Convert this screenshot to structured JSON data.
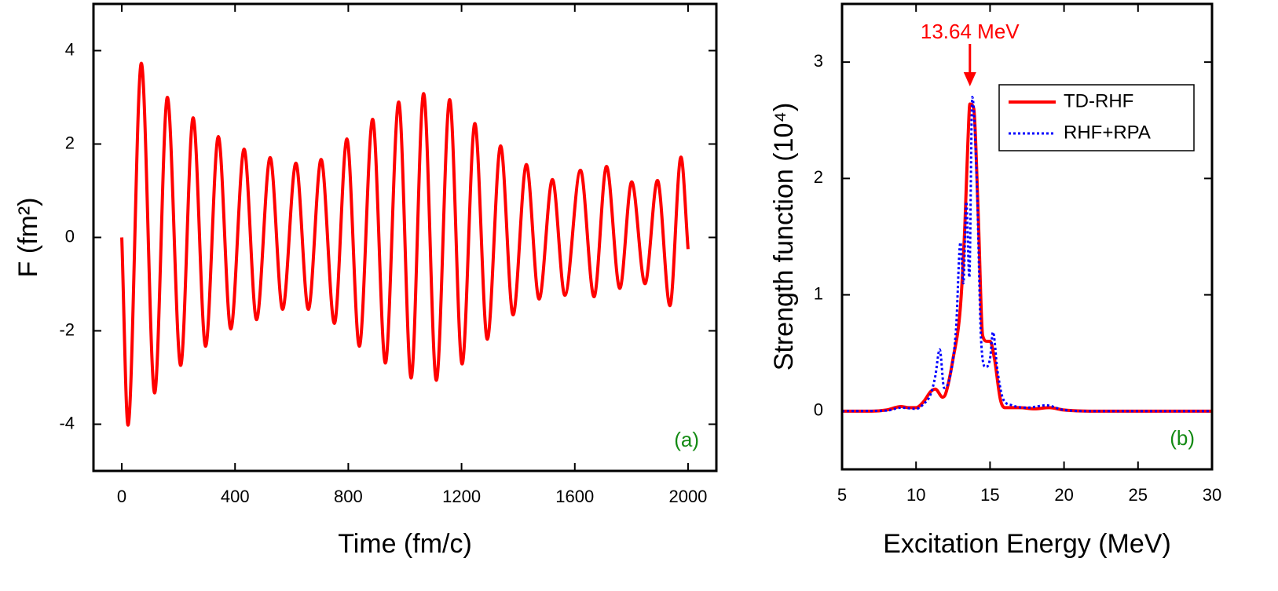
{
  "chart_data": [
    {
      "type": "line",
      "panel_label": "(a)",
      "x_label": "Time (fm/c)",
      "y_label": "F (fm²)",
      "xlim": [
        -100,
        2100
      ],
      "ylim": [
        -5,
        5
      ],
      "xticks": [
        0,
        400,
        800,
        1200,
        1600,
        2000
      ],
      "yticks": [
        -4,
        -2,
        0,
        2,
        4
      ],
      "series": [
        {
          "name": "F",
          "color": "#ff0000",
          "x": [
            0,
            22,
            69,
            116,
            161,
            208,
            252,
            296,
            341,
            385,
            432,
            476,
            524,
            568,
            615,
            659,
            704,
            751,
            795,
            839,
            886,
            931,
            978,
            1022,
            1066,
            1111,
            1158,
            1202,
            1247,
            1291,
            1338,
            1382,
            1429,
            1474,
            1521,
            1565,
            1620,
            1668,
            1712,
            1759,
            1801,
            1848,
            1892,
            1936,
            1975,
            2000
          ],
          "values": [
            0,
            -4.02,
            3.73,
            -3.33,
            3.0,
            -2.74,
            2.56,
            -2.33,
            2.16,
            -1.96,
            1.89,
            -1.76,
            1.71,
            -1.54,
            1.59,
            -1.54,
            1.67,
            -1.84,
            2.11,
            -2.33,
            2.53,
            -2.69,
            2.9,
            -3.01,
            3.08,
            -3.06,
            2.95,
            -2.71,
            2.44,
            -2.18,
            1.96,
            -1.66,
            1.56,
            -1.32,
            1.24,
            -1.24,
            1.44,
            -1.27,
            1.52,
            -1.09,
            1.19,
            -0.99,
            1.22,
            -1.46,
            1.72,
            -0.25
          ]
        }
      ]
    },
    {
      "type": "line",
      "panel_label": "(b)",
      "x_label": "Excitation Energy (MeV)",
      "y_label": "Strength function (10⁴)",
      "xlim": [
        5,
        30
      ],
      "ylim": [
        -0.5,
        3.5
      ],
      "xticks": [
        5,
        10,
        15,
        20,
        25,
        30
      ],
      "yticks": [
        0,
        1,
        2,
        3
      ],
      "annotation": {
        "text": "13.64 MeV",
        "x": 13.64
      },
      "series": [
        {
          "name": "TD-RHF",
          "color": "#ff0000",
          "line_style": "solid",
          "x": [
            5,
            7,
            8,
            9,
            9.5,
            10,
            10.5,
            11,
            11.3,
            11.8,
            12,
            12.5,
            13,
            13.3,
            13.5,
            13.64,
            13.9,
            14.2,
            14.5,
            14.8,
            15,
            15.3,
            15.7,
            16,
            17,
            18,
            19,
            20,
            22,
            30
          ],
          "values": [
            0,
            0,
            0.01,
            0.04,
            0.03,
            0.03,
            0.08,
            0.17,
            0.19,
            0.12,
            0.15,
            0.45,
            0.9,
            1.6,
            2.3,
            2.64,
            2.6,
            1.7,
            0.65,
            0.6,
            0.6,
            0.45,
            0.1,
            0.03,
            0.03,
            0.02,
            0.03,
            0.01,
            0,
            0
          ]
        },
        {
          "name": "RHF+RPA",
          "color": "#0000ff",
          "line_style": "dotted",
          "x": [
            5,
            8,
            9,
            10,
            10.5,
            11,
            11.3,
            11.6,
            11.9,
            12.3,
            12.7,
            13,
            13.2,
            13.4,
            13.6,
            13.8,
            14.1,
            14.4,
            14.7,
            15,
            15.2,
            15.5,
            15.9,
            16.5,
            17.5,
            18.8,
            20,
            22,
            30
          ],
          "values": [
            0,
            0.005,
            0.03,
            0.02,
            0.06,
            0.15,
            0.3,
            0.53,
            0.2,
            0.3,
            0.7,
            1.45,
            1.1,
            1.8,
            1.15,
            2.7,
            2.0,
            0.6,
            0.38,
            0.45,
            0.68,
            0.35,
            0.1,
            0.05,
            0.03,
            0.05,
            0.01,
            0,
            0
          ]
        }
      ]
    }
  ]
}
